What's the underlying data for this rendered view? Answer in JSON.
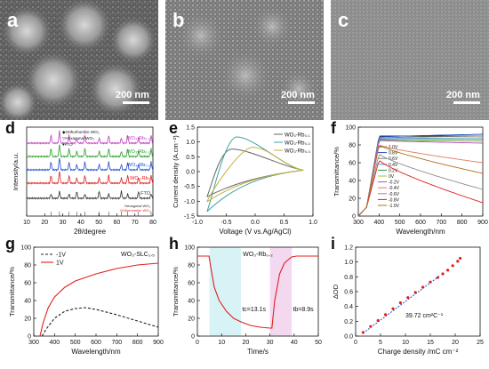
{
  "sem_panels": [
    {
      "letter": "a",
      "scale": "200 nm"
    },
    {
      "letter": "b",
      "scale": "200 nm"
    },
    {
      "letter": "c",
      "scale": "200 nm"
    }
  ],
  "chart_data": [
    {
      "panel": "d",
      "type": "line",
      "xlabel": "2θ/degree",
      "ylabel": "Intensity/a.u.",
      "xlim": [
        10,
        80
      ],
      "x_ticks": [
        "10",
        "20",
        "30",
        "40",
        "50",
        "60",
        "70",
        "80"
      ],
      "legend": [
        "◆Orthorhombic WO₃",
        "▽Hexagonal WO₃",
        "♥FTO"
      ],
      "series": [
        {
          "name": "WO₃-Rb₀.₃",
          "color": "#c040c0"
        },
        {
          "name": "WO₃-Rb₀.₂",
          "color": "#2aa02a"
        },
        {
          "name": "WO₃-Rb₀.₁",
          "color": "#2050d0"
        },
        {
          "name": "WO₃-Rb₀",
          "color": "#e02020"
        },
        {
          "name": "FTO",
          "color": "#333333"
        }
      ],
      "reference_labels": [
        "Hexagonal WO₃",
        "Orthorhombic WO₃"
      ]
    },
    {
      "panel": "e",
      "type": "line",
      "xlabel": "Voltage (V vs.Ag/AgCl)",
      "ylabel": "Current density (A.cm⁻²)",
      "xlim": [
        -1.2,
        1.2
      ],
      "ylim": [
        -1.5,
        1.5
      ],
      "x_ticks": [
        "-1.0",
        "-0.5",
        "0.0",
        "0.5",
        "1.0"
      ],
      "y_ticks": [
        "-1.5",
        "-1.0",
        "-0.5",
        "0.0",
        "0.5",
        "1.0",
        "1.5"
      ],
      "series": [
        {
          "name": "WO₃-Rb₀.₁",
          "color": "#666666",
          "peak_x": -0.48,
          "peak_y": 0.76,
          "min_y": -0.85
        },
        {
          "name": "WO₃-Rb₀.₂",
          "color": "#3fa4a0",
          "peak_x": -0.38,
          "peak_y": 1.17,
          "min_y": -1.35
        },
        {
          "name": "WO₃-Rb₀.₃",
          "color": "#c8b040",
          "peak_x": -0.05,
          "peak_y": 0.82,
          "min_y": -1.02
        }
      ]
    },
    {
      "panel": "f",
      "type": "line",
      "xlabel": "Wavelength/nm",
      "ylabel": "Transmittance/%",
      "xlim": [
        300,
        900
      ],
      "ylim": [
        0,
        100
      ],
      "x_ticks": [
        "300",
        "400",
        "500",
        "600",
        "700",
        "800",
        "900"
      ],
      "y_ticks": [
        "0",
        "20",
        "40",
        "60",
        "80",
        "100"
      ],
      "series": [
        {
          "name": "1.0V",
          "color": "#333333",
          "peak": 90,
          "end": 90
        },
        {
          "name": "0.8V",
          "color": "#1e4fbf",
          "peak": 89,
          "end": 92
        },
        {
          "name": "0.6V",
          "color": "#7a7a7a",
          "peak": 88,
          "end": 90
        },
        {
          "name": "0.4V",
          "color": "#5b9bd5",
          "peak": 87,
          "end": 88
        },
        {
          "name": "0.2V",
          "color": "#2a9d4a",
          "peak": 86,
          "end": 86
        },
        {
          "name": "0V",
          "color": "#9bc53d",
          "peak": 85,
          "end": 84
        },
        {
          "name": "-0.2V",
          "color": "#c04ad0",
          "peak": 85,
          "end": 82
        },
        {
          "name": "-0.4V",
          "color": "#e07a5f",
          "peak": 80,
          "end": 60
        },
        {
          "name": "-0.6V",
          "color": "#8c8c8c",
          "peak": 70,
          "end": 30
        },
        {
          "name": "-0.8V",
          "color": "#e02020",
          "peak": 63,
          "end": 15
        },
        {
          "name": "-1.0V",
          "color": "#b07020",
          "peak": 80,
          "end": 48
        }
      ]
    },
    {
      "panel": "g",
      "type": "line",
      "title": "WO₃-SLC₁.₅",
      "xlabel": "Wavelength/nm",
      "ylabel": "Transmittance/%",
      "xlim": [
        300,
        900
      ],
      "ylim": [
        0,
        100
      ],
      "x_ticks": [
        "300",
        "400",
        "500",
        "600",
        "700",
        "800",
        "900"
      ],
      "y_ticks": [
        "0",
        "20",
        "40",
        "60",
        "80",
        "100"
      ],
      "series": [
        {
          "name": "-1V",
          "style": "dashed",
          "color": "#222222",
          "x": [
            340,
            360,
            400,
            450,
            500,
            550,
            600,
            700,
            800,
            900
          ],
          "y": [
            0,
            8,
            20,
            28,
            31,
            32,
            30,
            24,
            17,
            10
          ]
        },
        {
          "name": "1V",
          "style": "solid",
          "color": "#e02020",
          "x": [
            330,
            345,
            370,
            400,
            450,
            500,
            600,
            700,
            800,
            900
          ],
          "y": [
            0,
            15,
            32,
            44,
            55,
            62,
            70,
            76,
            80,
            82
          ]
        }
      ]
    },
    {
      "panel": "h",
      "type": "line",
      "title": "WO₃-Rb₀.₂",
      "xlabel": "Time/s",
      "ylabel": "Transmittance/%",
      "xlim": [
        0,
        50
      ],
      "ylim": [
        0,
        100
      ],
      "x_ticks": [
        "0",
        "10",
        "20",
        "30",
        "40",
        "50"
      ],
      "y_ticks": [
        "0",
        "20",
        "40",
        "60",
        "80",
        "100"
      ],
      "annotations": [
        "tc=13.1s",
        "tb=8.9s"
      ],
      "x": [
        0,
        4.8,
        5.5,
        7,
        9,
        12,
        15,
        18,
        22,
        26,
        30,
        30.8,
        32,
        34,
        36,
        38,
        39,
        41,
        45,
        50
      ],
      "y": [
        90,
        90,
        78,
        55,
        40,
        28,
        20,
        16,
        12,
        10,
        9,
        9,
        40,
        70,
        82,
        87,
        89,
        90,
        90,
        90
      ]
    },
    {
      "panel": "i",
      "type": "scatter",
      "xlabel": "Charge density /mC cm⁻²",
      "ylabel": "ΔOD",
      "annotation": "39.72 cm²C⁻¹",
      "xlim": [
        0,
        25
      ],
      "ylim": [
        0,
        1.2
      ],
      "x_ticks": [
        "0",
        "5",
        "10",
        "15",
        "20",
        "25"
      ],
      "y_ticks": [
        "0.0",
        "0.2",
        "0.4",
        "0.6",
        "0.8",
        "1.0",
        "1.2"
      ],
      "x": [
        1.5,
        3,
        4.5,
        6,
        7.5,
        9,
        10.5,
        12,
        13.5,
        15,
        16.5,
        17.5,
        18.5,
        19.5,
        20.5,
        21
      ],
      "y": [
        0.05,
        0.13,
        0.21,
        0.29,
        0.37,
        0.45,
        0.52,
        0.59,
        0.66,
        0.73,
        0.79,
        0.84,
        0.89,
        0.95,
        1.01,
        1.05
      ]
    }
  ]
}
